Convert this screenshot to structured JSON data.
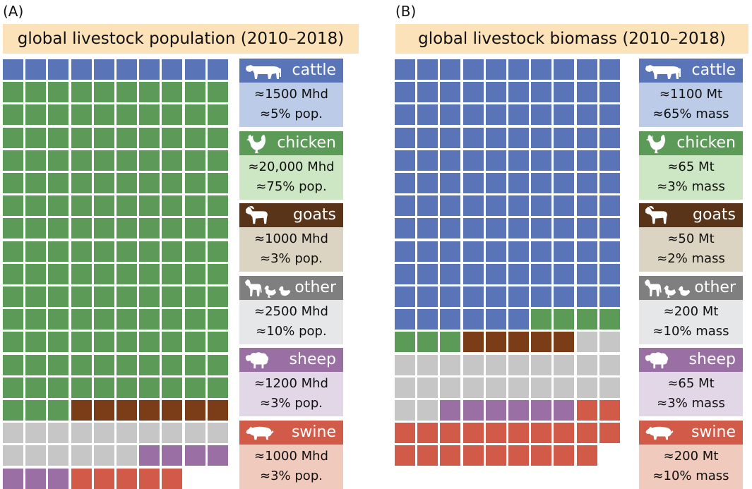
{
  "chart_data": [
    {
      "type": "waffle",
      "panel": "(A)",
      "title": "global livestock population (2010–2018)",
      "grid": {
        "columns": 10,
        "rows": 19
      },
      "series": [
        {
          "name": "cattle",
          "squares": 10,
          "value": "≈1500 Mhd",
          "share": "≈5% pop.",
          "color": "#5a74b8",
          "light": "#bccbe8"
        },
        {
          "name": "chicken",
          "squares": 143,
          "value": "≈20,000 Mhd",
          "share": "≈75% pop.",
          "color": "#5c9a57",
          "light": "#cde6c3"
        },
        {
          "name": "goats",
          "squares": 7,
          "value": "≈1000 Mhd",
          "share": "≈3% pop.",
          "color": "#7a3d18",
          "light": "#dcd4c2"
        },
        {
          "name": "other",
          "squares": 16,
          "value": "≈2500 Mhd",
          "share": "≈10% pop.",
          "color": "#c6c6c6",
          "light": "#e6e7e8"
        },
        {
          "name": "sheep",
          "squares": 7,
          "value": "≈1200 Mhd",
          "share": "≈3% pop.",
          "color": "#9a6fa4",
          "light": "#e2d7e7"
        },
        {
          "name": "swine",
          "squares": 5,
          "value": "≈1000 Mhd",
          "share": "≈3% pop.",
          "color": "#d25a48",
          "light": "#f0cbbd"
        }
      ]
    },
    {
      "type": "waffle",
      "panel": "(B)",
      "title": "global livestock biomass (2010–2018)",
      "grid": {
        "columns": 10,
        "rows": 19
      },
      "series": [
        {
          "name": "cattle",
          "squares": 116,
          "value": "≈1100 Mt",
          "share": "≈65% mass",
          "color": "#5a74b8",
          "light": "#bccbe8"
        },
        {
          "name": "chicken",
          "squares": 7,
          "value": "≈65 Mt",
          "share": "≈3% mass",
          "color": "#5c9a57",
          "light": "#cde6c3"
        },
        {
          "name": "goats",
          "squares": 5,
          "value": "≈50 Mt",
          "share": "≈2% mass",
          "color": "#7a3d18",
          "light": "#dcd4c2"
        },
        {
          "name": "other",
          "squares": 24,
          "value": "≈200 Mt",
          "share": "≈10% mass",
          "color": "#c6c6c6",
          "light": "#e6e7e8"
        },
        {
          "name": "sheep",
          "squares": 6,
          "value": "≈65 Mt",
          "share": "≈3% mass",
          "color": "#9a6fa4",
          "light": "#e2d7e7"
        },
        {
          "name": "swine",
          "squares": 21,
          "value": "≈200 Mt",
          "share": "≈10% mass",
          "color": "#d25a48",
          "light": "#f0cbbd"
        }
      ]
    }
  ],
  "legend_colors": {
    "cattle": "#5a74b8",
    "chicken": "#5c9a57",
    "goats": "#5a3418",
    "other": "#7f7f7f",
    "sheep": "#9a6fa4",
    "swine": "#d25a48"
  },
  "icons": {
    "cattle": "cow-icon",
    "chicken": "rooster-icon",
    "goats": "goat-icon",
    "other": "horse-chicken-duck-icon",
    "sheep": "sheep-icon",
    "swine": "pig-icon"
  }
}
